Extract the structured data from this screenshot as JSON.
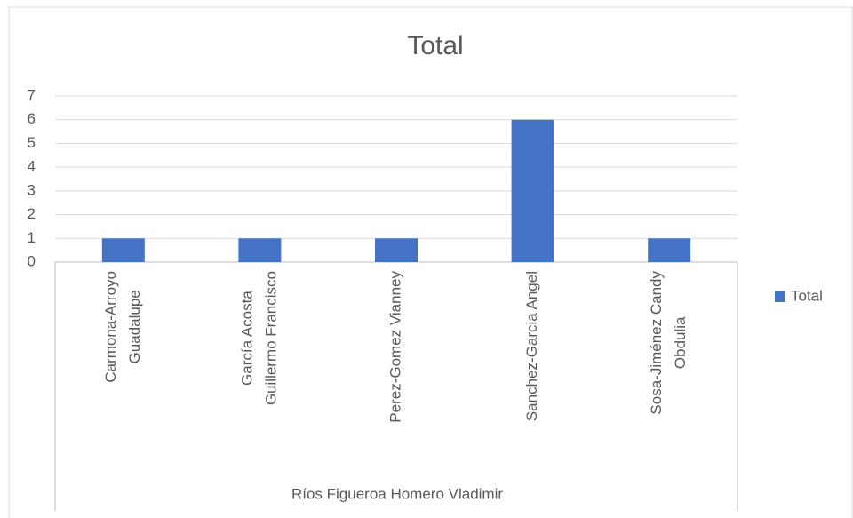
{
  "chart_data": {
    "type": "bar",
    "title": "Total",
    "categories": [
      [
        "Carmona-Arroyo",
        "Guadalupe"
      ],
      [
        "García Acosta",
        "Guillermo Francisco"
      ],
      [
        "Perez-Gomez Vianney"
      ],
      [
        "Sanchez-Garcia Angel"
      ],
      [
        "Sosa-Jiménez Candy",
        "Obdulia"
      ]
    ],
    "group": "Ríos Figueroa Homero Vladimir",
    "series": [
      {
        "name": "Total",
        "color": "#4472c4",
        "values": [
          1,
          1,
          1,
          6,
          1
        ]
      }
    ],
    "ylim": [
      0,
      7
    ],
    "yticks": [
      0,
      1,
      2,
      3,
      4,
      5,
      6,
      7
    ],
    "grid": true,
    "legend": "right"
  }
}
